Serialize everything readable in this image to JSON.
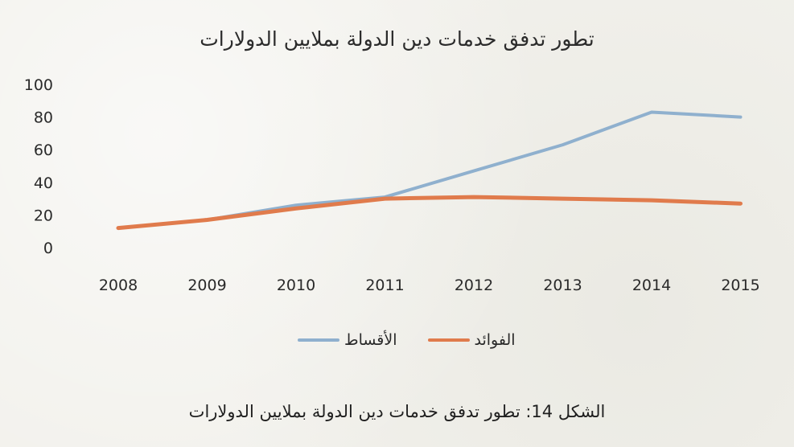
{
  "chart_data": {
    "type": "line",
    "title": "تطور تدفق خدمات دين الدولة بملايين الدولارات",
    "categories": [
      "2008",
      "2009",
      "2010",
      "2011",
      "2012",
      "2013",
      "2014",
      "2015"
    ],
    "ylim": [
      0,
      100
    ],
    "yticks": [
      "0",
      "20",
      "40",
      "60",
      "80",
      "100"
    ],
    "grid": false,
    "legend_position": "bottom",
    "series": [
      {
        "name": "الأقساط",
        "color": "#8fb0ce",
        "values": [
          12,
          17,
          26,
          31,
          47,
          63,
          83,
          80
        ]
      },
      {
        "name": "الفوائد",
        "color": "#e07b4c",
        "values": [
          12,
          17,
          24,
          30,
          31,
          30,
          29,
          27
        ]
      }
    ]
  },
  "caption": "الشكل 14: تطور تدفق خدمات دين الدولة بملايين الدولارات"
}
